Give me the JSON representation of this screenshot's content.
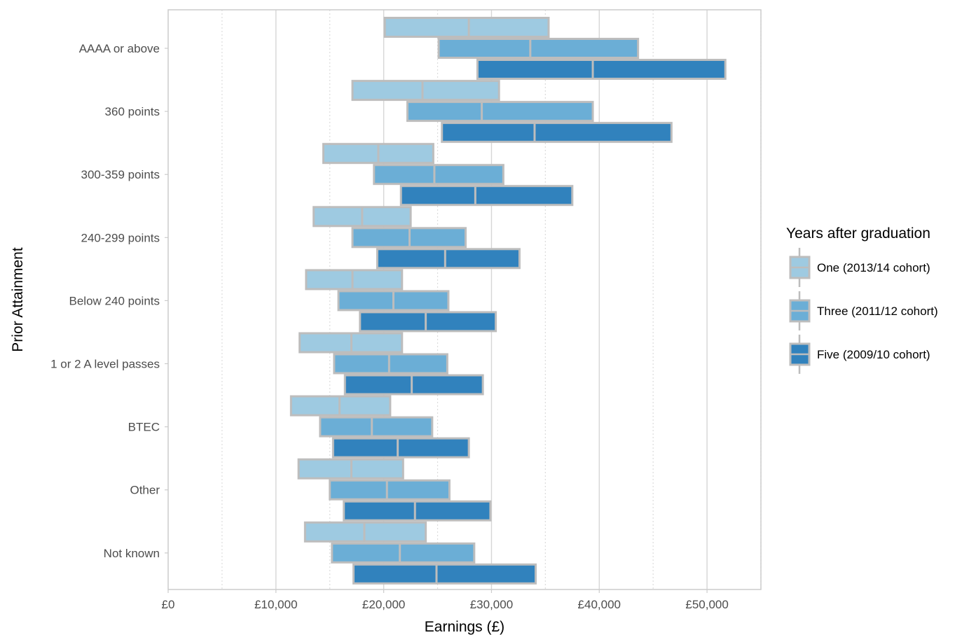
{
  "chart_data": {
    "type": "boxplot-horizontal",
    "xlabel": "Earnings (£)",
    "ylabel": "Prior Attainment",
    "xlim": [
      0,
      55000
    ],
    "x_ticks": [
      0,
      10000,
      20000,
      30000,
      40000,
      50000
    ],
    "x_tick_labels": [
      "£0",
      "£10,000",
      "£20,000",
      "£30,000",
      "£40,000",
      "£50,000"
    ],
    "categories": [
      "AAAA or above",
      "360 points",
      "300-359 points",
      "240-299 points",
      "Below 240 points",
      "1 or 2 A level passes",
      "BTEC",
      "Other",
      "Not known"
    ],
    "legend_title": "Years after graduation",
    "legend_position": "right",
    "grid": true,
    "series": [
      {
        "name": "One (2013/14 cohort)",
        "color": "#9ecae1",
        "boxes": [
          {
            "q1": 20100,
            "median": 27900,
            "q3": 35300
          },
          {
            "q1": 17100,
            "median": 23600,
            "q3": 30700
          },
          {
            "q1": 14400,
            "median": 19500,
            "q3": 24600
          },
          {
            "q1": 13500,
            "median": 18000,
            "q3": 22500
          },
          {
            "q1": 12800,
            "median": 17100,
            "q3": 21700
          },
          {
            "q1": 12200,
            "median": 17000,
            "q3": 21700
          },
          {
            "q1": 11400,
            "median": 15900,
            "q3": 20600
          },
          {
            "q1": 12100,
            "median": 17000,
            "q3": 21800
          },
          {
            "q1": 12700,
            "median": 18200,
            "q3": 23900
          }
        ]
      },
      {
        "name": "Three (2011/12 cohort)",
        "color": "#6baed6",
        "boxes": [
          {
            "q1": 25100,
            "median": 33600,
            "q3": 43600
          },
          {
            "q1": 22200,
            "median": 29100,
            "q3": 39400
          },
          {
            "q1": 19100,
            "median": 24700,
            "q3": 31100
          },
          {
            "q1": 17100,
            "median": 22400,
            "q3": 27600
          },
          {
            "q1": 15800,
            "median": 20900,
            "q3": 26000
          },
          {
            "q1": 15400,
            "median": 20500,
            "q3": 25900
          },
          {
            "q1": 14100,
            "median": 18900,
            "q3": 24500
          },
          {
            "q1": 15000,
            "median": 20300,
            "q3": 26100
          },
          {
            "q1": 15200,
            "median": 21500,
            "q3": 28400
          }
        ]
      },
      {
        "name": "Five (2009/10 cohort)",
        "color": "#3182bd",
        "boxes": [
          {
            "q1": 28700,
            "median": 39400,
            "q3": 51700
          },
          {
            "q1": 25400,
            "median": 34000,
            "q3": 46700
          },
          {
            "q1": 21600,
            "median": 28500,
            "q3": 37500
          },
          {
            "q1": 19400,
            "median": 25700,
            "q3": 32600
          },
          {
            "q1": 17800,
            "median": 23900,
            "q3": 30400
          },
          {
            "q1": 16400,
            "median": 22600,
            "q3": 29200
          },
          {
            "q1": 15300,
            "median": 21300,
            "q3": 27900
          },
          {
            "q1": 16300,
            "median": 22900,
            "q3": 29900
          },
          {
            "q1": 17200,
            "median": 24900,
            "q3": 34100
          }
        ]
      }
    ]
  }
}
